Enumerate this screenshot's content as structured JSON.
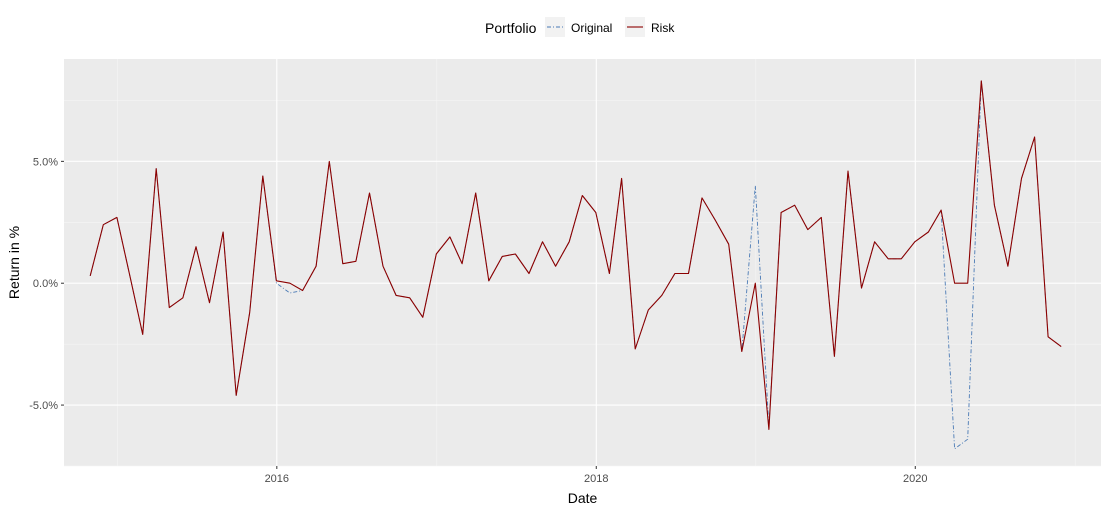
{
  "chart_data": {
    "type": "line",
    "title": "",
    "xlabel": "Date",
    "ylabel": "Return in %",
    "legend": {
      "title": "Portfolio",
      "position": "top",
      "entries": [
        "Original",
        "Risk"
      ]
    },
    "xlim": [
      "2014-09-01",
      "2021-03-01"
    ],
    "ylim": [
      -7.5,
      9.2
    ],
    "x_ticks": [
      "2016-01-01",
      "2018-01-01",
      "2020-01-01"
    ],
    "x_tick_labels": [
      "2016",
      "2018",
      "2020"
    ],
    "y_ticks": [
      -5,
      0,
      5
    ],
    "y_tick_labels": [
      "-5.0%",
      "0.0%",
      "5.0%"
    ],
    "grid": true,
    "x": [
      "2014-10-31",
      "2014-11-30",
      "2014-12-31",
      "2015-01-31",
      "2015-02-28",
      "2015-03-31",
      "2015-04-30",
      "2015-05-31",
      "2015-06-30",
      "2015-07-31",
      "2015-08-31",
      "2015-09-30",
      "2015-10-31",
      "2015-11-30",
      "2015-12-31",
      "2016-01-31",
      "2016-02-29",
      "2016-03-31",
      "2016-04-30",
      "2016-05-31",
      "2016-06-30",
      "2016-07-31",
      "2016-08-31",
      "2016-09-30",
      "2016-10-31",
      "2016-11-30",
      "2016-12-31",
      "2017-01-31",
      "2017-02-28",
      "2017-03-31",
      "2017-04-30",
      "2017-05-31",
      "2017-06-30",
      "2017-07-31",
      "2017-08-31",
      "2017-09-30",
      "2017-10-31",
      "2017-11-30",
      "2017-12-31",
      "2018-01-31",
      "2018-02-28",
      "2018-03-31",
      "2018-04-30",
      "2018-05-31",
      "2018-06-30",
      "2018-07-31",
      "2018-08-31",
      "2018-09-30",
      "2018-10-31",
      "2018-11-30",
      "2018-12-31",
      "2019-01-31",
      "2019-02-28",
      "2019-03-31",
      "2019-04-30",
      "2019-05-31",
      "2019-06-30",
      "2019-07-31",
      "2019-08-31",
      "2019-09-30",
      "2019-10-31",
      "2019-11-30",
      "2019-12-31",
      "2020-01-31",
      "2020-02-29",
      "2020-03-31",
      "2020-04-30",
      "2020-05-31",
      "2020-06-30",
      "2020-07-31",
      "2020-08-31",
      "2020-09-30",
      "2020-10-31",
      "2020-11-30"
    ],
    "series": [
      {
        "name": "Original",
        "color": "#4a7ab5",
        "dash": "dashed",
        "values": [
          0.3,
          2.4,
          2.7,
          0.2,
          -2.1,
          4.7,
          -1.0,
          -0.6,
          1.5,
          -0.8,
          2.1,
          -4.6,
          -1.2,
          4.4,
          0.0,
          -0.4,
          -0.3,
          0.7,
          5.0,
          0.8,
          0.9,
          3.7,
          0.7,
          -0.5,
          -0.6,
          -1.4,
          1.2,
          1.9,
          0.8,
          3.7,
          0.1,
          1.1,
          1.2,
          0.4,
          1.7,
          0.7,
          1.7,
          3.6,
          2.9,
          0.4,
          4.3,
          -2.7,
          -1.1,
          -0.5,
          0.4,
          0.4,
          3.5,
          2.6,
          1.6,
          -2.8,
          4.0,
          -5.9,
          2.9,
          3.2,
          2.2,
          2.7,
          -3.0,
          4.6,
          -0.2,
          1.7,
          1.0,
          1.0,
          1.7,
          2.1,
          3.0,
          -6.8,
          -6.4,
          8.3,
          3.2,
          0.7,
          4.3,
          6.0,
          -2.2,
          -2.6
        ]
      },
      {
        "name": "Risk",
        "color": "#8b0000",
        "dash": "solid",
        "values": [
          0.3,
          2.4,
          2.7,
          0.2,
          -2.1,
          4.7,
          -1.0,
          -0.6,
          1.5,
          -0.8,
          2.1,
          -4.6,
          -1.2,
          4.4,
          0.1,
          0.0,
          -0.3,
          0.7,
          5.0,
          0.8,
          0.9,
          3.7,
          0.7,
          -0.5,
          -0.6,
          -1.4,
          1.2,
          1.9,
          0.8,
          3.7,
          0.1,
          1.1,
          1.2,
          0.4,
          1.7,
          0.7,
          1.7,
          3.6,
          2.9,
          0.4,
          4.3,
          -2.7,
          -1.1,
          -0.5,
          0.4,
          0.4,
          3.5,
          2.6,
          1.6,
          -2.8,
          0.0,
          -6.0,
          2.9,
          3.2,
          2.2,
          2.7,
          -3.0,
          4.6,
          -0.2,
          1.7,
          1.0,
          1.0,
          1.7,
          2.1,
          3.0,
          0.0,
          0.0,
          8.3,
          3.2,
          0.7,
          4.3,
          6.0,
          -2.2,
          -2.6
        ]
      }
    ],
    "colors": {
      "panel": "#ebebeb",
      "grid_major": "#ffffff",
      "grid_minor": "#f5f5f5",
      "tick_text": "#4d4d4d"
    }
  }
}
